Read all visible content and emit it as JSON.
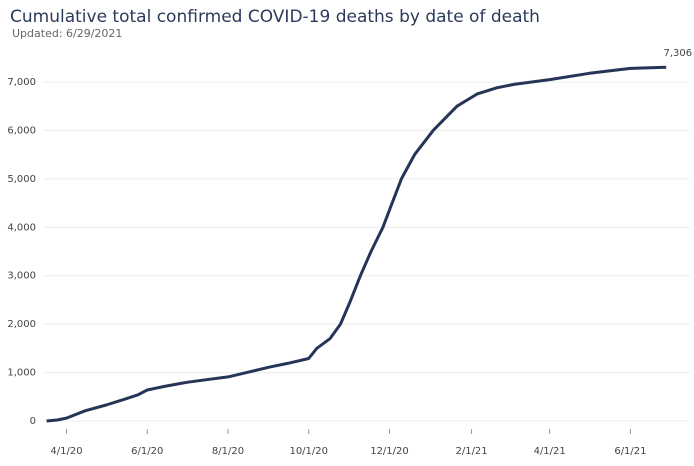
{
  "chart_data": {
    "type": "line",
    "title": "Cumulative total confirmed COVID-19 deaths by date of death",
    "subtitle": "Updated: 6/29/2021",
    "x": [
      "3/17/20",
      "3/25/20",
      "4/1/20",
      "4/15/20",
      "5/1/20",
      "5/15/20",
      "5/25/20",
      "6/1/20",
      "6/15/20",
      "7/1/20",
      "7/15/20",
      "8/1/20",
      "8/15/20",
      "9/1/20",
      "9/15/20",
      "10/1/20",
      "10/7/20",
      "10/17/20",
      "10/25/20",
      "11/1/20",
      "11/9/20",
      "11/17/20",
      "11/26/20",
      "12/3/20",
      "12/10/20",
      "12/20/20",
      "1/3/21",
      "1/21/21",
      "2/5/21",
      "2/20/21",
      "3/5/21",
      "4/1/21",
      "5/1/21",
      "6/1/21",
      "6/28/21"
    ],
    "series": [
      {
        "name": "Cumulative deaths",
        "color": "#263557",
        "values": [
          0,
          20,
          60,
          210,
          330,
          450,
          540,
          640,
          720,
          800,
          850,
          910,
          1000,
          1110,
          1190,
          1290,
          1500,
          1700,
          2000,
          2450,
          3000,
          3500,
          4000,
          4500,
          5000,
          5500,
          6000,
          6500,
          6750,
          6880,
          6950,
          7050,
          7180,
          7280,
          7306
        ]
      }
    ],
    "end_label": "7,306",
    "xlim": [
      "3/12/20",
      "7/16/21"
    ],
    "xticks": [
      "4/1/20",
      "6/1/20",
      "8/1/20",
      "10/1/20",
      "12/1/20",
      "2/1/21",
      "4/1/21",
      "6/1/21"
    ],
    "ylim": [
      0,
      7000
    ],
    "yticks": [
      0,
      {
        "value": 1000,
        "label": "1,000"
      },
      {
        "value": 2000,
        "label": "2,000"
      },
      {
        "value": 3000,
        "label": "3,000"
      },
      {
        "value": 4000,
        "label": "4,000"
      },
      {
        "value": 5000,
        "label": "5,000"
      },
      {
        "value": 6000,
        "label": "6,000"
      },
      {
        "value": 7000,
        "label": "7,000"
      }
    ],
    "grid": true
  }
}
